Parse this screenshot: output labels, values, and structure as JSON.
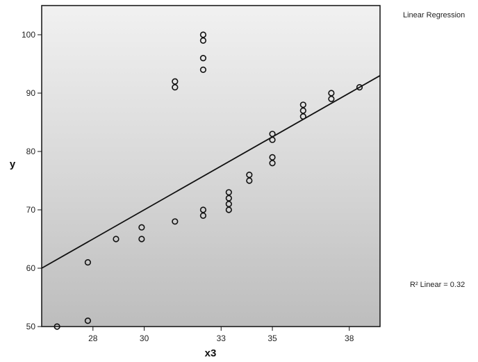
{
  "chart_data": {
    "type": "scatter",
    "xlabel": "x3",
    "ylabel": "y",
    "legend_title": "Linear Regression",
    "r2_label": "R² Linear = 0.32",
    "xlim": [
      26.0,
      39.2
    ],
    "ylim": [
      50,
      105
    ],
    "x_ticks": [
      28,
      30,
      33,
      35,
      38
    ],
    "y_ticks": [
      50,
      60,
      70,
      80,
      90,
      100
    ],
    "grid": false,
    "fit_line": {
      "x": [
        26.0,
        39.2
      ],
      "y": [
        60.0,
        93.0
      ]
    },
    "points": [
      {
        "x": 26.6,
        "y": 50.0
      },
      {
        "x": 27.8,
        "y": 51.0
      },
      {
        "x": 27.8,
        "y": 61.0
      },
      {
        "x": 28.9,
        "y": 65.0
      },
      {
        "x": 29.9,
        "y": 65.0
      },
      {
        "x": 29.9,
        "y": 67.0
      },
      {
        "x": 31.2,
        "y": 68.0
      },
      {
        "x": 31.2,
        "y": 91.0
      },
      {
        "x": 31.2,
        "y": 92.0
      },
      {
        "x": 32.3,
        "y": 69.0
      },
      {
        "x": 32.3,
        "y": 70.0
      },
      {
        "x": 32.3,
        "y": 94.0
      },
      {
        "x": 32.3,
        "y": 96.0
      },
      {
        "x": 32.3,
        "y": 99.0
      },
      {
        "x": 32.3,
        "y": 100.0
      },
      {
        "x": 33.3,
        "y": 70.0
      },
      {
        "x": 33.3,
        "y": 71.0
      },
      {
        "x": 33.3,
        "y": 72.0
      },
      {
        "x": 33.3,
        "y": 73.0
      },
      {
        "x": 34.1,
        "y": 75.0
      },
      {
        "x": 34.1,
        "y": 76.0
      },
      {
        "x": 35.0,
        "y": 78.0
      },
      {
        "x": 35.0,
        "y": 79.0
      },
      {
        "x": 35.0,
        "y": 82.0
      },
      {
        "x": 35.0,
        "y": 83.0
      },
      {
        "x": 36.2,
        "y": 86.0
      },
      {
        "x": 36.2,
        "y": 87.0
      },
      {
        "x": 36.2,
        "y": 88.0
      },
      {
        "x": 37.3,
        "y": 89.0
      },
      {
        "x": 37.3,
        "y": 90.0
      },
      {
        "x": 38.4,
        "y": 91.0
      }
    ]
  }
}
